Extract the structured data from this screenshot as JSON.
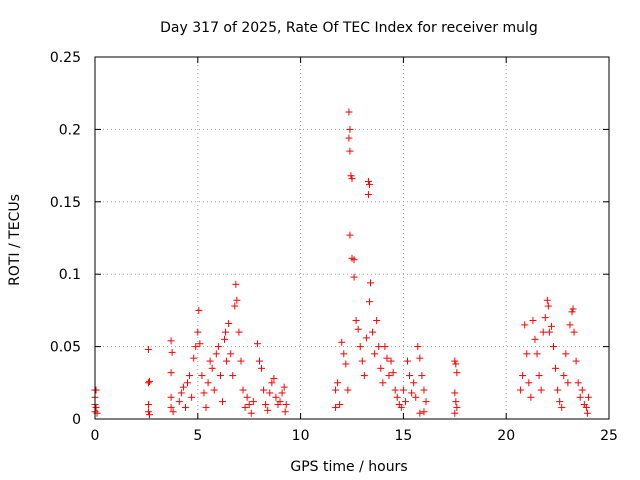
{
  "chart_data": {
    "type": "scatter",
    "title": "Day 317 of 2025, Rate Of TEC Index for receiver mulg",
    "xlabel": "GPS time / hours",
    "ylabel": "ROTI / TECUs",
    "xlim": [
      0,
      25
    ],
    "ylim": [
      0,
      0.25
    ],
    "x_ticks": [
      0,
      5,
      10,
      15,
      20,
      25
    ],
    "x_tick_labels": [
      "0",
      "5",
      "10",
      "15",
      "20",
      "25"
    ],
    "y_ticks": [
      0,
      0.05,
      0.1,
      0.15,
      0.2,
      0.25
    ],
    "y_tick_labels": [
      "0",
      "0.05",
      "0.1",
      "0.15",
      "0.2",
      "0.25"
    ],
    "grid": true,
    "marker": "+",
    "marker_color": "#ff0000",
    "series": [
      {
        "points": [
          [
            0.0,
            0.02
          ],
          [
            0.05,
            0.02
          ],
          [
            0.0,
            0.015
          ],
          [
            0.0,
            0.01
          ],
          [
            0.05,
            0.008
          ],
          [
            0.0,
            0.005
          ],
          [
            0.1,
            0.004
          ],
          [
            2.6,
            0.048
          ],
          [
            2.6,
            0.025
          ],
          [
            2.65,
            0.026
          ],
          [
            2.6,
            0.01
          ],
          [
            2.6,
            0.005
          ],
          [
            2.65,
            0.003
          ],
          [
            3.7,
            0.054
          ],
          [
            3.75,
            0.046
          ],
          [
            3.7,
            0.032
          ],
          [
            3.7,
            0.015
          ],
          [
            3.7,
            0.008
          ],
          [
            3.8,
            0.005
          ],
          [
            4.1,
            0.012
          ],
          [
            4.2,
            0.018
          ],
          [
            4.3,
            0.022
          ],
          [
            4.4,
            0.008
          ],
          [
            4.5,
            0.025
          ],
          [
            4.6,
            0.03
          ],
          [
            4.7,
            0.015
          ],
          [
            4.8,
            0.042
          ],
          [
            4.9,
            0.05
          ],
          [
            5.0,
            0.06
          ],
          [
            5.05,
            0.075
          ],
          [
            5.1,
            0.052
          ],
          [
            5.2,
            0.03
          ],
          [
            5.3,
            0.018
          ],
          [
            5.4,
            0.008
          ],
          [
            5.5,
            0.025
          ],
          [
            5.6,
            0.04
          ],
          [
            5.7,
            0.035
          ],
          [
            5.8,
            0.02
          ],
          [
            5.9,
            0.045
          ],
          [
            6.0,
            0.05
          ],
          [
            6.1,
            0.03
          ],
          [
            6.2,
            0.012
          ],
          [
            6.3,
            0.055
          ],
          [
            6.35,
            0.06
          ],
          [
            6.4,
            0.04
          ],
          [
            6.5,
            0.066
          ],
          [
            6.6,
            0.045
          ],
          [
            6.7,
            0.03
          ],
          [
            6.8,
            0.078
          ],
          [
            6.85,
            0.093
          ],
          [
            6.9,
            0.082
          ],
          [
            7.0,
            0.06
          ],
          [
            7.1,
            0.04
          ],
          [
            7.2,
            0.02
          ],
          [
            7.3,
            0.008
          ],
          [
            7.4,
            0.015
          ],
          [
            7.5,
            0.01
          ],
          [
            7.6,
            0.004
          ],
          [
            7.7,
            0.012
          ],
          [
            7.9,
            0.052
          ],
          [
            8.0,
            0.04
          ],
          [
            8.1,
            0.035
          ],
          [
            8.2,
            0.02
          ],
          [
            8.3,
            0.01
          ],
          [
            8.4,
            0.006
          ],
          [
            8.5,
            0.018
          ],
          [
            8.6,
            0.025
          ],
          [
            8.7,
            0.028
          ],
          [
            8.8,
            0.015
          ],
          [
            8.9,
            0.01
          ],
          [
            9.0,
            0.012
          ],
          [
            9.1,
            0.018
          ],
          [
            9.2,
            0.022
          ],
          [
            9.3,
            0.01
          ],
          [
            9.25,
            0.005
          ],
          [
            11.7,
            0.02
          ],
          [
            11.8,
            0.025
          ],
          [
            11.7,
            0.008
          ],
          [
            11.9,
            0.01
          ],
          [
            12.0,
            0.053
          ],
          [
            12.1,
            0.045
          ],
          [
            12.2,
            0.038
          ],
          [
            12.3,
            0.02
          ],
          [
            12.35,
            0.212
          ],
          [
            12.4,
            0.2
          ],
          [
            12.35,
            0.194
          ],
          [
            12.4,
            0.185
          ],
          [
            12.45,
            0.168
          ],
          [
            12.5,
            0.166
          ],
          [
            12.4,
            0.127
          ],
          [
            12.5,
            0.111
          ],
          [
            12.6,
            0.11
          ],
          [
            12.6,
            0.098
          ],
          [
            12.7,
            0.068
          ],
          [
            12.8,
            0.062
          ],
          [
            12.9,
            0.05
          ],
          [
            13.0,
            0.04
          ],
          [
            13.1,
            0.03
          ],
          [
            13.2,
            0.056
          ],
          [
            13.3,
            0.164
          ],
          [
            13.35,
            0.162
          ],
          [
            13.3,
            0.155
          ],
          [
            13.4,
            0.094
          ],
          [
            13.35,
            0.081
          ],
          [
            13.5,
            0.06
          ],
          [
            13.6,
            0.045
          ],
          [
            13.7,
            0.068
          ],
          [
            13.8,
            0.05
          ],
          [
            13.9,
            0.035
          ],
          [
            14.0,
            0.025
          ],
          [
            14.1,
            0.05
          ],
          [
            14.2,
            0.042
          ],
          [
            14.3,
            0.03
          ],
          [
            14.4,
            0.04
          ],
          [
            14.5,
            0.032
          ],
          [
            14.6,
            0.02
          ],
          [
            14.7,
            0.015
          ],
          [
            14.8,
            0.01
          ],
          [
            14.9,
            0.008
          ],
          [
            15.0,
            0.02
          ],
          [
            15.1,
            0.012
          ],
          [
            15.2,
            0.04
          ],
          [
            15.3,
            0.03
          ],
          [
            15.4,
            0.018
          ],
          [
            15.5,
            0.025
          ],
          [
            15.6,
            0.015
          ],
          [
            15.7,
            0.05
          ],
          [
            15.8,
            0.042
          ],
          [
            15.9,
            0.03
          ],
          [
            16.0,
            0.02
          ],
          [
            16.1,
            0.012
          ],
          [
            16.0,
            0.005
          ],
          [
            15.8,
            0.004
          ],
          [
            17.5,
            0.04
          ],
          [
            17.55,
            0.038
          ],
          [
            17.6,
            0.032
          ],
          [
            17.5,
            0.018
          ],
          [
            17.55,
            0.012
          ],
          [
            17.6,
            0.008
          ],
          [
            17.5,
            0.004
          ],
          [
            20.7,
            0.02
          ],
          [
            20.8,
            0.03
          ],
          [
            20.9,
            0.065
          ],
          [
            21.0,
            0.045
          ],
          [
            21.1,
            0.025
          ],
          [
            21.2,
            0.015
          ],
          [
            21.3,
            0.068
          ],
          [
            21.4,
            0.055
          ],
          [
            21.5,
            0.045
          ],
          [
            21.6,
            0.03
          ],
          [
            21.7,
            0.02
          ],
          [
            21.8,
            0.06
          ],
          [
            21.9,
            0.07
          ],
          [
            22.0,
            0.082
          ],
          [
            22.05,
            0.078
          ],
          [
            22.1,
            0.06
          ],
          [
            22.2,
            0.064
          ],
          [
            22.3,
            0.05
          ],
          [
            22.4,
            0.035
          ],
          [
            22.5,
            0.02
          ],
          [
            22.6,
            0.012
          ],
          [
            22.7,
            0.008
          ],
          [
            22.8,
            0.03
          ],
          [
            22.9,
            0.045
          ],
          [
            23.0,
            0.025
          ],
          [
            23.1,
            0.065
          ],
          [
            23.2,
            0.074
          ],
          [
            23.25,
            0.076
          ],
          [
            23.3,
            0.06
          ],
          [
            23.4,
            0.04
          ],
          [
            23.5,
            0.025
          ],
          [
            23.6,
            0.015
          ],
          [
            23.7,
            0.02
          ],
          [
            23.8,
            0.01
          ],
          [
            23.9,
            0.008
          ],
          [
            24.0,
            0.015
          ],
          [
            23.95,
            0.004
          ]
        ]
      }
    ]
  }
}
